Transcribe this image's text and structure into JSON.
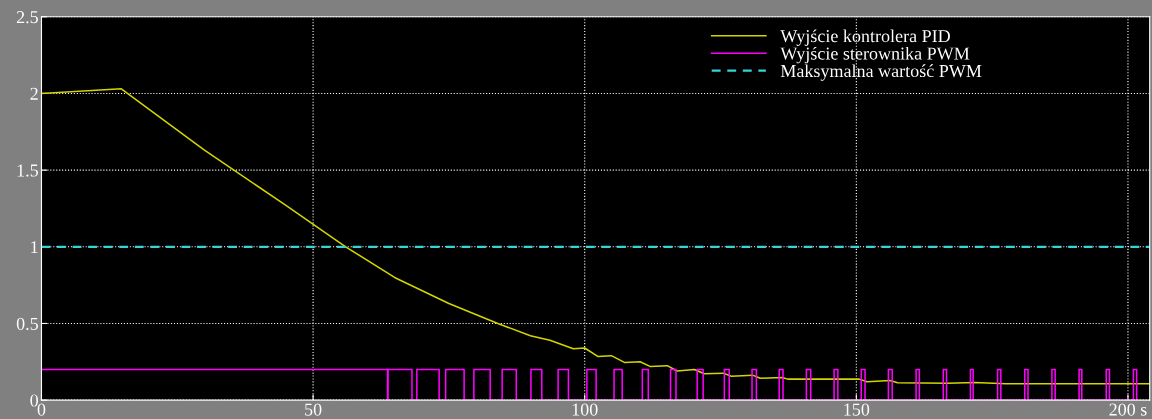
{
  "chart_data": {
    "type": "line",
    "xlim": [
      0,
      204
    ],
    "ylim": [
      0,
      2.5
    ],
    "xticks": [
      0,
      50,
      100,
      150,
      {
        "value": 200,
        "label": "200 s"
      }
    ],
    "yticks": [
      0,
      0.5,
      1,
      1.5,
      2,
      2.5
    ],
    "grid": true,
    "legend": "top right",
    "series": [
      {
        "name": "Wyjście kontrolera PID",
        "color": "#d4d400",
        "line_style": "solid",
        "x": [
          0,
          14.7,
          30,
          45,
          56,
          65,
          75,
          84,
          90,
          93.6,
          97.9,
          100,
          102.4,
          104.9,
          107.4,
          110.2,
          112,
          115.2,
          117,
          120.2,
          122,
          125.5,
          127,
          130.9,
          132.3,
          136.3,
          137.4,
          146.3,
          150.5,
          152,
          156.2,
          157.6,
          166.8,
          171.8,
          177.5,
          202,
          204
        ],
        "values": [
          2.0,
          2.03,
          1.63,
          1.27,
          1.0,
          0.8,
          0.63,
          0.5,
          0.42,
          0.39,
          0.335,
          0.34,
          0.285,
          0.29,
          0.245,
          0.25,
          0.22,
          0.225,
          0.19,
          0.2,
          0.172,
          0.176,
          0.156,
          0.163,
          0.143,
          0.148,
          0.137,
          0.137,
          0.137,
          0.12,
          0.128,
          0.113,
          0.11,
          0.115,
          0.107,
          0.107,
          0.107
        ]
      },
      {
        "name": "Wyjście sterownika PWM",
        "color": "#ff00ff",
        "type": "step",
        "line_style": "solid",
        "x": [
          0,
          63.7,
          63.8,
          68.2,
          69.1,
          73.2,
          74.4,
          77.8,
          79.6,
          82.6,
          84.8,
          87.4,
          90.1,
          92.1,
          95.1,
          97.0,
          100.4,
          102.1,
          105.4,
          106.9,
          110.6,
          111.7,
          115.8,
          116.8,
          120.7,
          121.8,
          125.7,
          126.6,
          130.8,
          131.6,
          135.8,
          136.5,
          140.8,
          141.6,
          145.9,
          146.6,
          150.9,
          151.6,
          155.9,
          156.6,
          161.0,
          161.6,
          166.0,
          166.6,
          171.0,
          171.5,
          176.0,
          176.6,
          181.0,
          181.6,
          186.0,
          186.6,
          191.0,
          191.5,
          196.0,
          196.6,
          201.0,
          201.6
        ],
        "values": [
          0.2,
          0,
          0.2,
          0,
          0.2,
          0,
          0.2,
          0,
          0.2,
          0,
          0.2,
          0,
          0.2,
          0,
          0.2,
          0,
          0.2,
          0,
          0.2,
          0,
          0.2,
          0,
          0.2,
          0,
          0.2,
          0,
          0.2,
          0,
          0.2,
          0,
          0.2,
          0,
          0.2,
          0,
          0.2,
          0,
          0.2,
          0,
          0.2,
          0,
          0.2,
          0,
          0.2,
          0,
          0.2,
          0,
          0.2,
          0,
          0.2,
          0,
          0.2,
          0,
          0.2,
          0,
          0.2,
          0,
          0.2,
          0
        ]
      },
      {
        "name": "Maksymalna wartość PWM",
        "color": "#33d6d6",
        "line_style": "dashed",
        "x": [
          0,
          204
        ],
        "values": [
          1,
          1
        ]
      }
    ]
  }
}
